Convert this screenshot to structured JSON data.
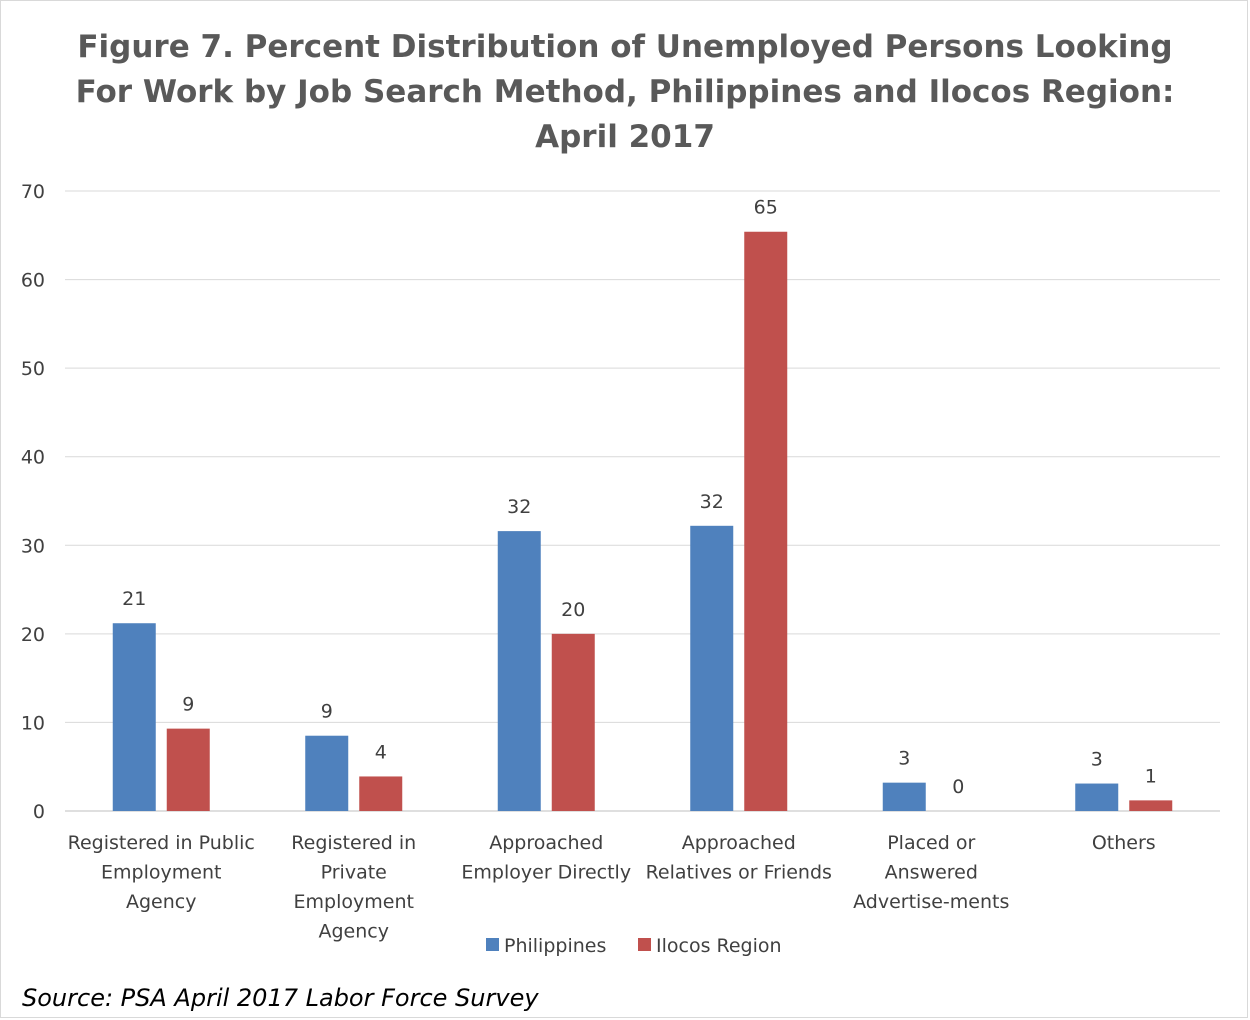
{
  "chart_data": {
    "type": "bar",
    "title": "Figure 7. Percent Distribution of Unemployed Persons Looking For Work by Job Search Method, Philippines and Ilocos Region: April 2017",
    "title_lines": [
      "Figure 7. Percent Distribution of Unemployed Persons Looking",
      "For Work by Job Search Method, Philippines and Ilocos Region:",
      "April 2017"
    ],
    "xlabel": "",
    "ylabel": "",
    "ylim": [
      0,
      70
    ],
    "yticks": [
      0,
      10,
      20,
      30,
      40,
      50,
      60,
      70
    ],
    "grid": true,
    "legend_position": "bottom",
    "categories": [
      "Registered in Public Employment Agency",
      "Registered in Private Employment Agency",
      "Approached Employer Directly",
      "Approached Relatives or Friends",
      "Placed or Answered Advertise-ments",
      "Others"
    ],
    "category_lines": [
      [
        "Registered in Public",
        "Employment",
        "Agency"
      ],
      [
        "Registered in",
        "Private",
        "Employment",
        "Agency"
      ],
      [
        "Approached",
        "Employer Directly"
      ],
      [
        "Approached",
        "Relatives or Friends"
      ],
      [
        "Placed or",
        "Answered",
        "Advertise-ments"
      ],
      [
        "Others"
      ]
    ],
    "series": [
      {
        "name": "Philippines",
        "color": "#4f81bd",
        "values": [
          21.2,
          8.5,
          31.6,
          32.2,
          3.2,
          3.1
        ],
        "labels": [
          "21",
          "9",
          "32",
          "32",
          "3",
          "3"
        ]
      },
      {
        "name": "Ilocos Region",
        "color": "#c0504d",
        "values": [
          9.3,
          3.9,
          20.0,
          65.4,
          0.0,
          1.2
        ],
        "labels": [
          "9",
          "4",
          "20",
          "65",
          "0",
          "1"
        ]
      }
    ]
  },
  "source": "Source: PSA April 2017 Labor Force Survey"
}
